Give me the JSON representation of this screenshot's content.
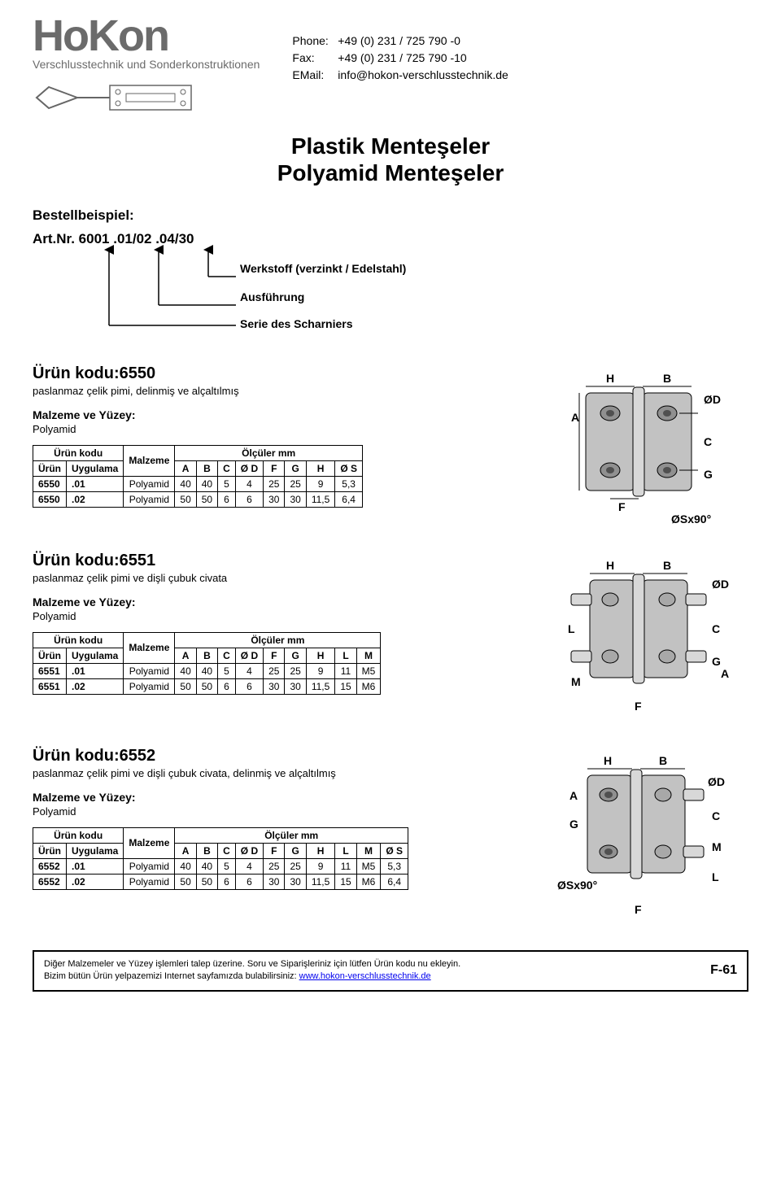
{
  "logo": {
    "name": "HoKon",
    "subtitle": "Verschlusstechnik und Sonderkonstruktionen"
  },
  "contact": {
    "phone_label": "Phone:",
    "phone": "+49 (0) 231 / 725 790 -0",
    "fax_label": "Fax:",
    "fax": "+49 (0) 231 / 725 790 -10",
    "email_label": "EMail:",
    "email": "info@hokon-verschlusstechnik.de"
  },
  "title_line1": "Plastik Menteşeler",
  "title_line2": "Polyamid Menteşeler",
  "bestel": {
    "head": "Bestellbeispiel:",
    "artline": "Art.Nr. 6001 .01/02 .04/30",
    "lbl1": "Werkstoff (verzinkt / Edelstahl)",
    "lbl2": "Ausführung",
    "lbl3": "Serie des Scharniers"
  },
  "common": {
    "urun_kodu": "Ürün kodu",
    "urun": "Ürün",
    "uygulama": "Uygulama",
    "malzeme": "Malzeme",
    "olculer": "Ölçüler mm",
    "malzeme_yuzey": "Malzeme ve Yüzey:",
    "polyamid": "Polyamid"
  },
  "p6550": {
    "code": "Ürün kodu:6550",
    "desc": "paslanmaz çelik pimi, delinmiş ve alçaltılmış",
    "cols": [
      "A",
      "B",
      "C",
      "Ø D",
      "F",
      "G",
      "H",
      "Ø S"
    ],
    "rows": [
      {
        "u": "6550",
        "uy": ".01",
        "m": "Polyamid",
        "v": [
          "40",
          "40",
          "5",
          "4",
          "25",
          "25",
          "9",
          "5,3"
        ]
      },
      {
        "u": "6550",
        "uy": ".02",
        "m": "Polyamid",
        "v": [
          "50",
          "50",
          "6",
          "6",
          "30",
          "30",
          "11,5",
          "6,4"
        ]
      }
    ],
    "diagram_labels": {
      "H": "H",
      "B": "B",
      "OD": "ØD",
      "A": "A",
      "C": "C",
      "G": "G",
      "F": "F",
      "OS": "ØSx90°"
    }
  },
  "p6551": {
    "code": "Ürün kodu:6551",
    "desc": "paslanmaz çelik pimi ve dişli çubuk civata",
    "cols": [
      "A",
      "B",
      "C",
      "Ø D",
      "F",
      "G",
      "H",
      "L",
      "M"
    ],
    "rows": [
      {
        "u": "6551",
        "uy": ".01",
        "m": "Polyamid",
        "v": [
          "40",
          "40",
          "5",
          "4",
          "25",
          "25",
          "9",
          "11",
          "M5"
        ]
      },
      {
        "u": "6551",
        "uy": ".02",
        "m": "Polyamid",
        "v": [
          "50",
          "50",
          "6",
          "6",
          "30",
          "30",
          "11,5",
          "15",
          "M6"
        ]
      }
    ],
    "diagram_labels": {
      "H": "H",
      "B": "B",
      "OD": "ØD",
      "L": "L",
      "C": "C",
      "G": "G",
      "A": "A",
      "M": "M",
      "F": "F"
    }
  },
  "p6552": {
    "code": "Ürün kodu:6552",
    "desc": "paslanmaz çelik pimi ve dişli çubuk civata, delinmiş ve alçaltılmış",
    "cols": [
      "A",
      "B",
      "C",
      "Ø D",
      "F",
      "G",
      "H",
      "L",
      "M",
      "Ø S"
    ],
    "rows": [
      {
        "u": "6552",
        "uy": ".01",
        "m": "Polyamid",
        "v": [
          "40",
          "40",
          "5",
          "4",
          "25",
          "25",
          "9",
          "11",
          "M5",
          "5,3"
        ]
      },
      {
        "u": "6552",
        "uy": ".02",
        "m": "Polyamid",
        "v": [
          "50",
          "50",
          "6",
          "6",
          "30",
          "30",
          "11,5",
          "15",
          "M6",
          "6,4"
        ]
      }
    ],
    "diagram_labels": {
      "H": "H",
      "B": "B",
      "OD": "ØD",
      "A": "A",
      "G": "G",
      "C": "C",
      "M": "M",
      "OS": "ØSx90°",
      "L": "L",
      "F": "F"
    }
  },
  "footer": {
    "line1": "Diğer Malzemeler ve Yüzey işlemleri talep üzerine. Soru ve Siparişleriniz için lütfen Ürün kodu nu ekleyin.",
    "line2a": "Bizim bütün Ürün yelpazemizi Internet sayfamızda bulabilirsiniz: ",
    "line2b": "www.hokon-verschlusstechnik.de",
    "page": "F-61"
  },
  "style": {
    "hinge_fill": "#c2c2c2",
    "hinge_stroke": "#000000",
    "pin_fill": "#d8d8d8",
    "arrow_color": "#000000",
    "text_color": "#000000"
  }
}
